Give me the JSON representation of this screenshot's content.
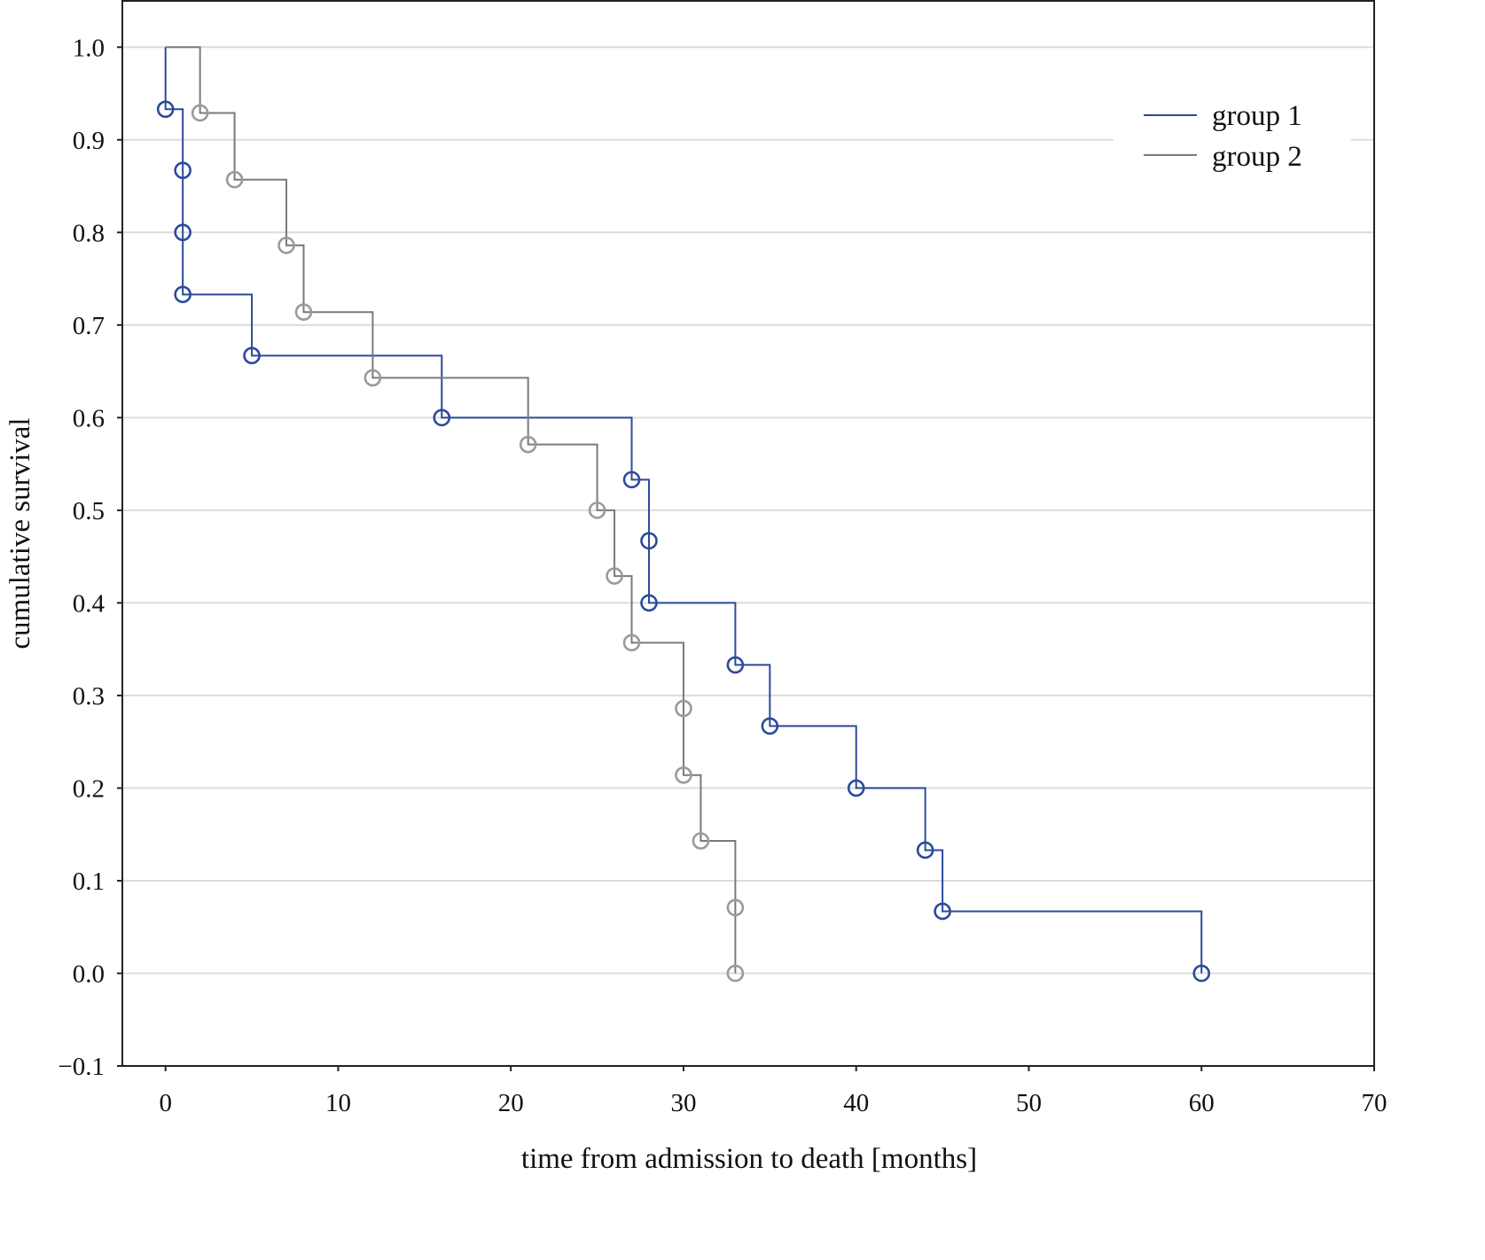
{
  "chart_data": {
    "type": "line",
    "subtype": "kaplan-meier step",
    "xlabel": "time from admission to death [months]",
    "ylabel": "cumulative survival",
    "xlim": [
      -2.5,
      70
    ],
    "ylim": [
      -0.1,
      1.05
    ],
    "xticks": [
      "0",
      "10",
      "20",
      "30",
      "40",
      "50",
      "60",
      "70"
    ],
    "yticks": [
      "−0.1",
      "0.0",
      "0.1",
      "0.2",
      "0.3",
      "0.4",
      "0.5",
      "0.6",
      "0.7",
      "0.8",
      "0.9",
      "1.0"
    ],
    "grid": "horizontal",
    "legend_position": "top-right",
    "series": [
      {
        "name": "group 1",
        "color": "#2b4a9c",
        "marker_color": "#2b4a9c",
        "start": [
          0,
          1.0
        ],
        "points": [
          [
            0,
            0.933
          ],
          [
            1,
            0.867
          ],
          [
            1,
            0.8
          ],
          [
            1,
            0.733
          ],
          [
            5,
            0.667
          ],
          [
            16,
            0.6
          ],
          [
            27,
            0.533
          ],
          [
            28,
            0.467
          ],
          [
            28,
            0.4
          ],
          [
            33,
            0.333
          ],
          [
            35,
            0.267
          ],
          [
            40,
            0.2
          ],
          [
            44,
            0.133
          ],
          [
            45,
            0.067
          ],
          [
            60,
            0.0
          ]
        ]
      },
      {
        "name": "group 2",
        "color": "#7a7a7a",
        "marker_color": "#9a9a9a",
        "start": [
          0,
          1.0
        ],
        "points": [
          [
            2,
            0.929
          ],
          [
            4,
            0.857
          ],
          [
            7,
            0.786
          ],
          [
            8,
            0.714
          ],
          [
            12,
            0.643
          ],
          [
            21,
            0.571
          ],
          [
            25,
            0.5
          ],
          [
            26,
            0.429
          ],
          [
            27,
            0.357
          ],
          [
            30,
            0.286
          ],
          [
            30,
            0.214
          ],
          [
            31,
            0.143
          ],
          [
            33,
            0.071
          ],
          [
            33,
            0.0
          ]
        ]
      }
    ]
  }
}
